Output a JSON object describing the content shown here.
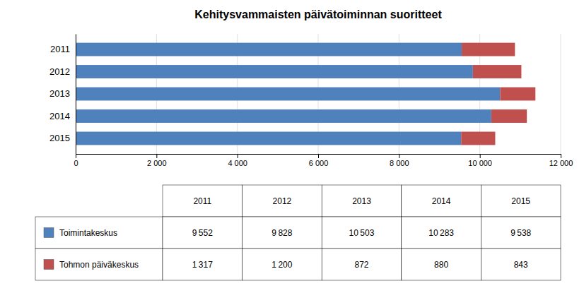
{
  "chart_data": [
    {
      "type": "bar",
      "title": "Kehitysvammaisten päivätoiminnan suoritteet",
      "orientation": "horizontal",
      "stacked": true,
      "grid": true,
      "categories": [
        "2015",
        "2014",
        "2013",
        "2012",
        "2011"
      ],
      "series": [
        {
          "name": "Toimintakeskus",
          "color": "#4f81bd",
          "values": [
            9538,
            10283,
            10503,
            9828,
            9552
          ]
        },
        {
          "name": "Tohmon päiväkeskus",
          "color": "#c0504d",
          "values": [
            843,
            880,
            872,
            1200,
            1317
          ]
        }
      ],
      "xlim": [
        0,
        12000
      ],
      "xticks": [
        0,
        {
          "value": 2000,
          "label": "2 000"
        },
        {
          "value": 4000,
          "label": "4 000"
        },
        {
          "value": 6000,
          "label": "6 000"
        },
        {
          "value": 8000,
          "label": "8 000"
        },
        {
          "value": 10000,
          "label": "10 000"
        },
        {
          "value": 12000,
          "label": "12 000"
        }
      ]
    },
    {
      "type": "table",
      "categories": [
        "2011",
        "2012",
        "2013",
        "2014",
        "2015"
      ],
      "series": [
        {
          "values": [
            9552,
            9828,
            10503,
            10283,
            9538
          ],
          "value_labels": [
            "9 552",
            "9 828",
            "10 503",
            "10 283",
            "9 538"
          ]
        },
        {
          "values": [
            1317,
            1200,
            872,
            880,
            843
          ],
          "value_labels": [
            "1 317",
            "1 200",
            "872",
            "880",
            "843"
          ]
        }
      ]
    }
  ]
}
